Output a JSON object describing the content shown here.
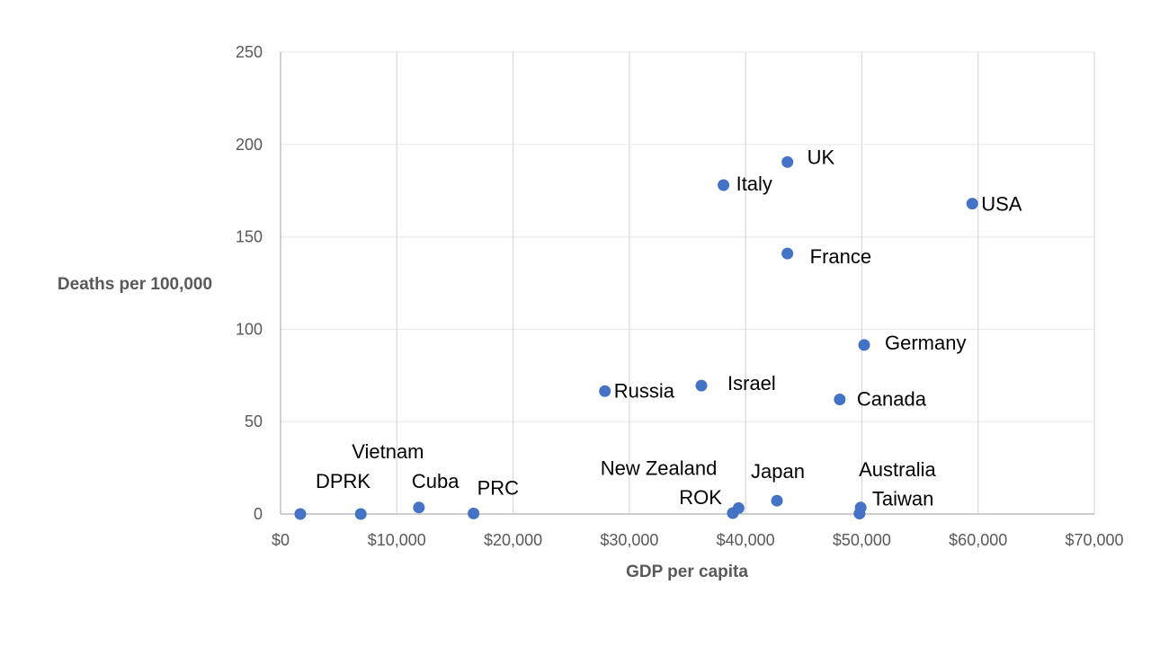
{
  "chart_data": {
    "type": "scatter",
    "title": "",
    "xlabel": "GDP per capita",
    "ylabel": "Deaths per 100,000",
    "xlim": [
      0,
      70000
    ],
    "ylim": [
      0,
      250
    ],
    "x_ticks": [
      0,
      10000,
      20000,
      30000,
      40000,
      50000,
      60000,
      70000
    ],
    "x_tick_labels": [
      "$0",
      "$10,000",
      "$20,000",
      "$30,000",
      "$40,000",
      "$50,000",
      "$60,000",
      "$70,000"
    ],
    "y_ticks": [
      0,
      50,
      100,
      150,
      200,
      250
    ],
    "y_tick_labels": [
      "0",
      "50",
      "100",
      "150",
      "200",
      "250"
    ],
    "grid": true,
    "legend": "none",
    "marker_color": "#4472C4",
    "points": [
      {
        "label": "DPRK",
        "x": 1700,
        "y": 0
      },
      {
        "label": "Vietnam",
        "x": 6900,
        "y": 0
      },
      {
        "label": "Cuba",
        "x": 11900,
        "y": 3.5
      },
      {
        "label": "PRC",
        "x": 16600,
        "y": 0.3
      },
      {
        "label": "Russia",
        "x": 27900,
        "y": 66.5
      },
      {
        "label": "Israel",
        "x": 36200,
        "y": 69.5
      },
      {
        "label": "Italy",
        "x": 38100,
        "y": 178
      },
      {
        "label": "ROK",
        "x": 38900,
        "y": 0.5
      },
      {
        "label": "New Zealand",
        "x": 39400,
        "y": 3.2
      },
      {
        "label": "Japan",
        "x": 42700,
        "y": 7.2
      },
      {
        "label": "UK",
        "x": 43600,
        "y": 190.5
      },
      {
        "label": "France",
        "x": 43600,
        "y": 141
      },
      {
        "label": "Canada",
        "x": 48100,
        "y": 62
      },
      {
        "label": "Taiwan",
        "x": 49800,
        "y": 0.2
      },
      {
        "label": "Australia",
        "x": 49900,
        "y": 3.5
      },
      {
        "label": "Germany",
        "x": 50200,
        "y": 91.5
      },
      {
        "label": "USA",
        "x": 59500,
        "y": 168
      }
    ]
  }
}
